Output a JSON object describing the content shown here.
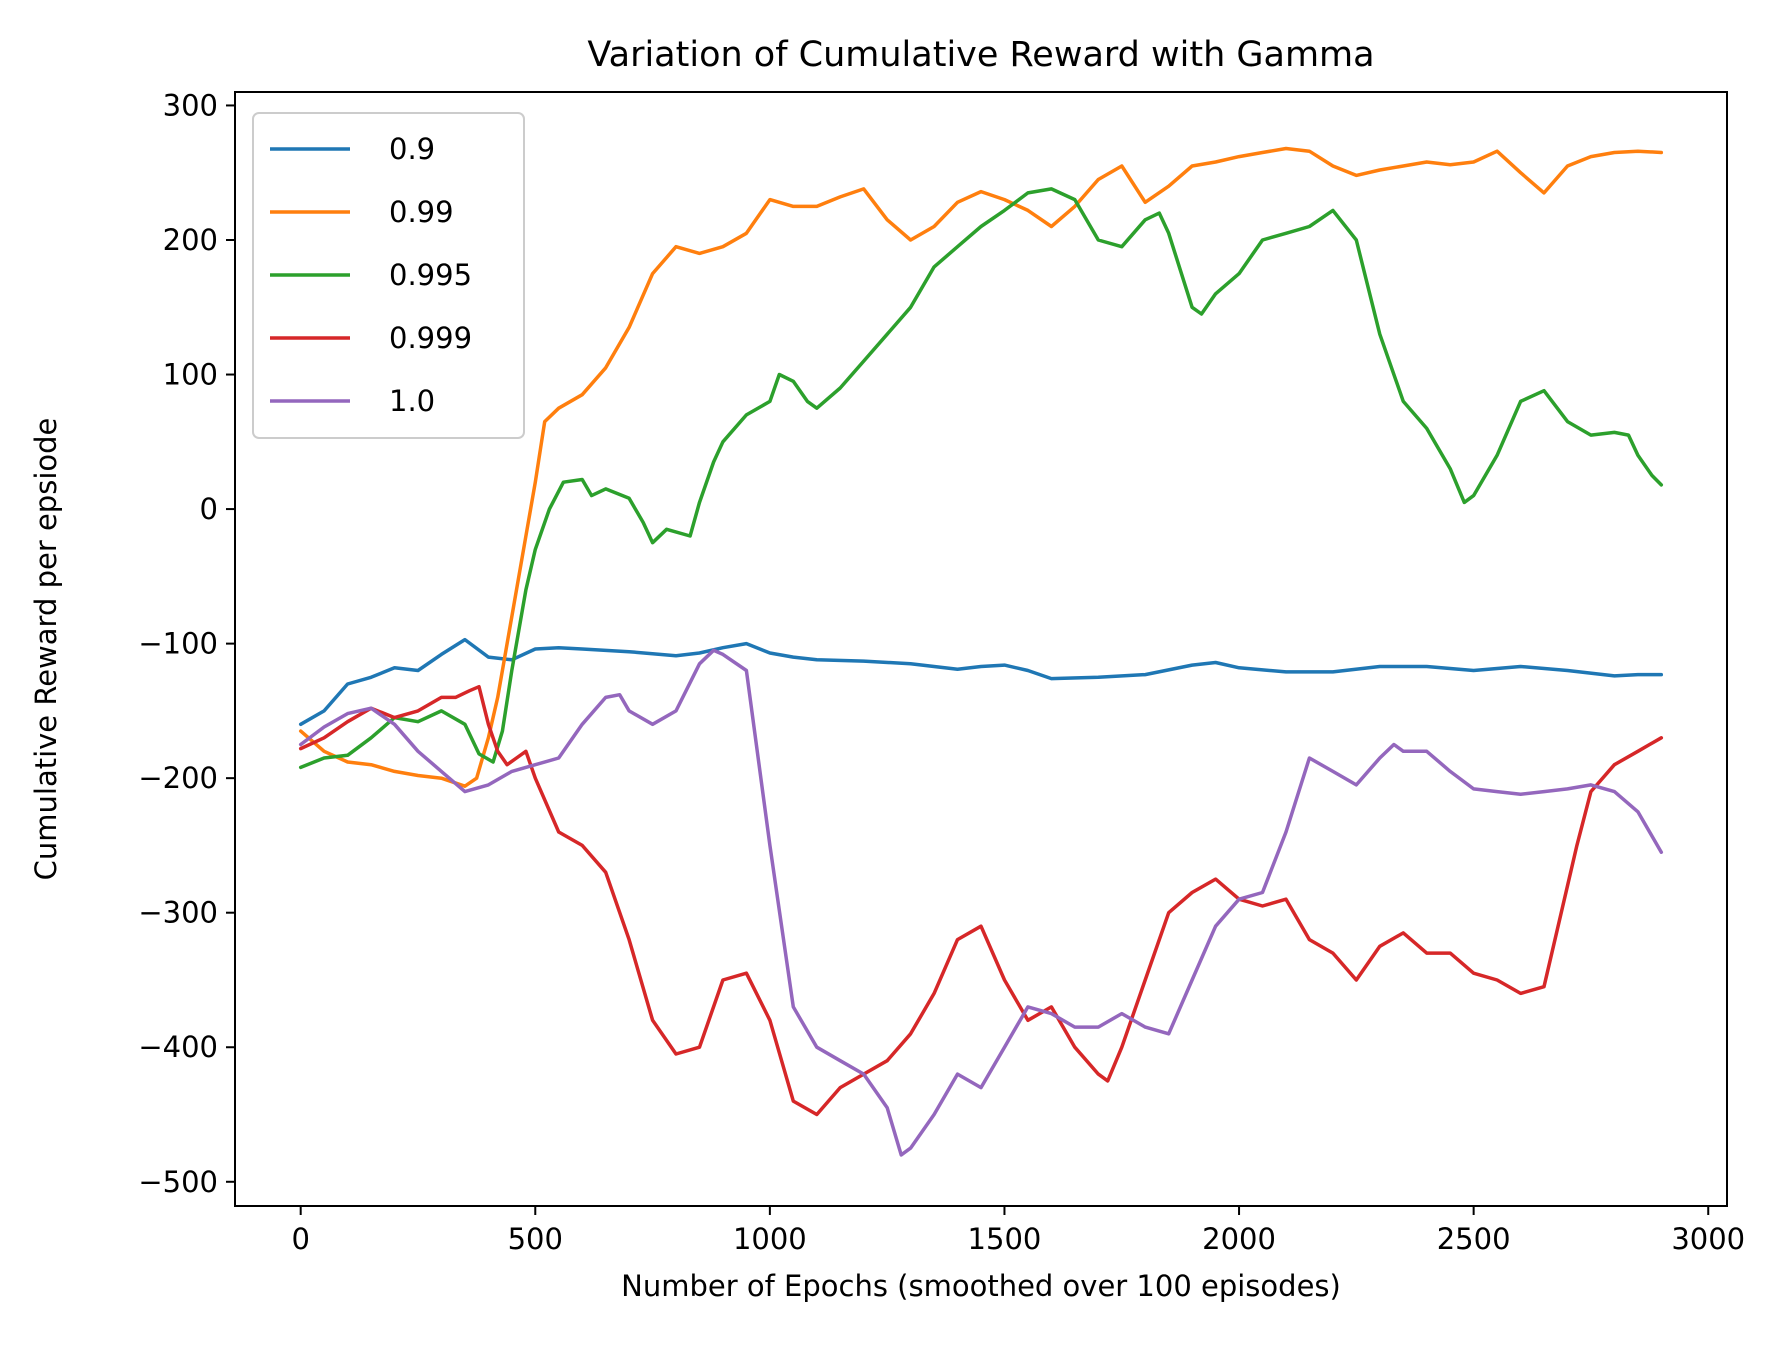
{
  "chart_data": {
    "type": "line",
    "title": "Variation of Cumulative Reward with Gamma",
    "xlabel": "Number of Epochs (smoothed over 100 episodes)",
    "ylabel": "Cumulative Reward per epsiode",
    "xlim": [
      -140,
      3040
    ],
    "ylim": [
      -518,
      310
    ],
    "xticks": [
      0,
      500,
      1000,
      1500,
      2000,
      2500,
      3000
    ],
    "xtick_labels": [
      "0",
      "500",
      "1000",
      "1500",
      "2000",
      "2500",
      "3000"
    ],
    "yticks": [
      300,
      200,
      100,
      0,
      -100,
      -200,
      -300,
      -400,
      -500
    ],
    "ytick_labels": [
      "300",
      "200",
      "100",
      "0",
      "−100",
      "−200",
      "−300",
      "−400",
      "−500"
    ],
    "grid": false,
    "legend_position": "upper-left",
    "series": [
      {
        "name": "0.9",
        "color": "#1f77b4",
        "x": [
          0,
          50,
          100,
          150,
          200,
          250,
          300,
          350,
          400,
          450,
          500,
          550,
          600,
          700,
          800,
          850,
          900,
          950,
          1000,
          1050,
          1100,
          1200,
          1300,
          1400,
          1450,
          1500,
          1550,
          1600,
          1700,
          1800,
          1900,
          1950,
          2000,
          2100,
          2200,
          2300,
          2400,
          2500,
          2600,
          2700,
          2800,
          2850,
          2900
        ],
        "y": [
          -160,
          -150,
          -130,
          -125,
          -118,
          -120,
          -108,
          -97,
          -110,
          -112,
          -104,
          -103,
          -104,
          -106,
          -109,
          -107,
          -103,
          -100,
          -107,
          -110,
          -112,
          -113,
          -115,
          -119,
          -117,
          -116,
          -120,
          -126,
          -125,
          -123,
          -116,
          -114,
          -118,
          -121,
          -121,
          -117,
          -117,
          -120,
          -117,
          -120,
          -124,
          -123,
          -123
        ]
      },
      {
        "name": "0.99",
        "color": "#ff7f0e",
        "x": [
          0,
          50,
          100,
          150,
          200,
          250,
          300,
          350,
          375,
          400,
          420,
          450,
          480,
          500,
          520,
          550,
          600,
          650,
          700,
          750,
          800,
          850,
          900,
          950,
          1000,
          1050,
          1100,
          1150,
          1200,
          1250,
          1300,
          1350,
          1400,
          1450,
          1500,
          1550,
          1600,
          1650,
          1700,
          1750,
          1800,
          1850,
          1900,
          1950,
          2000,
          2050,
          2100,
          2150,
          2200,
          2250,
          2300,
          2350,
          2400,
          2450,
          2500,
          2550,
          2600,
          2650,
          2700,
          2750,
          2800,
          2850,
          2900
        ],
        "y": [
          -165,
          -180,
          -188,
          -190,
          -195,
          -198,
          -200,
          -206,
          -200,
          -170,
          -140,
          -80,
          -20,
          20,
          65,
          75,
          85,
          105,
          135,
          175,
          195,
          190,
          195,
          205,
          230,
          225,
          225,
          232,
          238,
          215,
          200,
          210,
          228,
          236,
          230,
          222,
          210,
          225,
          245,
          255,
          228,
          240,
          255,
          258,
          262,
          265,
          268,
          266,
          255,
          248,
          252,
          255,
          258,
          256,
          258,
          266,
          250,
          235,
          255,
          262,
          265,
          266,
          265
        ]
      },
      {
        "name": "0.995",
        "color": "#2ca02c",
        "x": [
          0,
          50,
          100,
          150,
          200,
          250,
          300,
          350,
          380,
          410,
          430,
          450,
          480,
          500,
          530,
          560,
          600,
          620,
          650,
          700,
          730,
          750,
          780,
          830,
          850,
          880,
          900,
          950,
          1000,
          1020,
          1050,
          1080,
          1100,
          1150,
          1200,
          1250,
          1300,
          1350,
          1400,
          1450,
          1500,
          1550,
          1600,
          1650,
          1700,
          1750,
          1800,
          1830,
          1850,
          1900,
          1920,
          1950,
          2000,
          2050,
          2100,
          2150,
          2200,
          2250,
          2300,
          2350,
          2400,
          2450,
          2480,
          2500,
          2550,
          2600,
          2650,
          2700,
          2750,
          2800,
          2830,
          2850,
          2880,
          2900
        ],
        "y": [
          -192,
          -185,
          -183,
          -170,
          -155,
          -158,
          -150,
          -160,
          -182,
          -188,
          -165,
          -120,
          -60,
          -30,
          0,
          20,
          22,
          10,
          15,
          8,
          -10,
          -25,
          -15,
          -20,
          5,
          35,
          50,
          70,
          80,
          100,
          95,
          80,
          75,
          90,
          110,
          130,
          150,
          180,
          195,
          210,
          222,
          235,
          238,
          230,
          200,
          195,
          215,
          220,
          205,
          150,
          145,
          160,
          175,
          200,
          205,
          210,
          222,
          200,
          130,
          80,
          60,
          30,
          5,
          10,
          40,
          80,
          88,
          65,
          55,
          57,
          55,
          40,
          25,
          18
        ]
      },
      {
        "name": "0.999",
        "color": "#d62728",
        "x": [
          0,
          50,
          100,
          150,
          200,
          250,
          300,
          330,
          360,
          380,
          400,
          420,
          440,
          460,
          480,
          500,
          550,
          600,
          650,
          700,
          750,
          800,
          850,
          900,
          950,
          1000,
          1050,
          1100,
          1150,
          1200,
          1250,
          1300,
          1350,
          1400,
          1450,
          1500,
          1550,
          1600,
          1650,
          1700,
          1720,
          1750,
          1800,
          1850,
          1900,
          1950,
          2000,
          2050,
          2100,
          2150,
          2200,
          2250,
          2300,
          2350,
          2400,
          2450,
          2500,
          2550,
          2600,
          2650,
          2700,
          2720,
          2750,
          2800,
          2850,
          2900
        ],
        "y": [
          -178,
          -170,
          -158,
          -148,
          -155,
          -150,
          -140,
          -140,
          -135,
          -132,
          -160,
          -180,
          -190,
          -185,
          -180,
          -200,
          -240,
          -250,
          -270,
          -320,
          -380,
          -405,
          -400,
          -350,
          -345,
          -380,
          -440,
          -450,
          -430,
          -420,
          -410,
          -390,
          -360,
          -320,
          -310,
          -350,
          -380,
          -370,
          -400,
          -420,
          -425,
          -400,
          -350,
          -300,
          -285,
          -275,
          -290,
          -295,
          -290,
          -320,
          -330,
          -350,
          -325,
          -315,
          -330,
          -330,
          -345,
          -350,
          -360,
          -355,
          -280,
          -250,
          -210,
          -190,
          -180,
          -170
        ]
      },
      {
        "name": "1.0",
        "color": "#9467bd",
        "x": [
          0,
          50,
          100,
          150,
          200,
          250,
          300,
          350,
          400,
          450,
          500,
          550,
          600,
          650,
          680,
          700,
          750,
          800,
          850,
          880,
          900,
          950,
          1000,
          1050,
          1100,
          1150,
          1200,
          1250,
          1280,
          1300,
          1350,
          1400,
          1450,
          1500,
          1550,
          1600,
          1650,
          1700,
          1750,
          1800,
          1850,
          1900,
          1950,
          2000,
          2050,
          2100,
          2150,
          2200,
          2250,
          2300,
          2330,
          2350,
          2400,
          2450,
          2500,
          2550,
          2600,
          2650,
          2700,
          2750,
          2800,
          2850,
          2900
        ],
        "y": [
          -175,
          -162,
          -152,
          -148,
          -160,
          -180,
          -195,
          -210,
          -205,
          -195,
          -190,
          -185,
          -160,
          -140,
          -138,
          -150,
          -160,
          -150,
          -115,
          -105,
          -108,
          -120,
          -250,
          -370,
          -400,
          -410,
          -420,
          -445,
          -480,
          -475,
          -450,
          -420,
          -430,
          -400,
          -370,
          -375,
          -385,
          -385,
          -375,
          -385,
          -390,
          -350,
          -310,
          -290,
          -285,
          -240,
          -185,
          -195,
          -205,
          -185,
          -175,
          -180,
          -180,
          -195,
          -208,
          -210,
          -212,
          -210,
          -208,
          -205,
          -210,
          -225,
          -255
        ]
      }
    ]
  }
}
